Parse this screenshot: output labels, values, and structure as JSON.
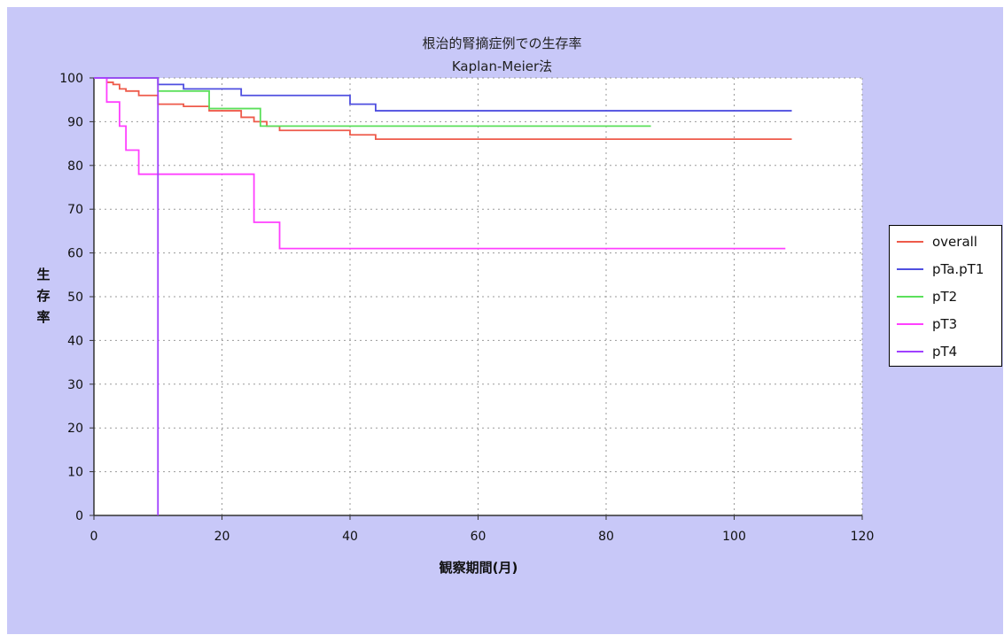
{
  "chart_data": {
    "type": "line",
    "title": "根治的腎摘症例での生存率",
    "subtitle": "Kaplan-Meier法",
    "xlabel": "観察期間(月)",
    "ylabel": "生存率",
    "xlim": [
      0,
      120
    ],
    "ylim": [
      0,
      100
    ],
    "x_ticks": [
      0,
      20,
      40,
      60,
      80,
      100,
      120
    ],
    "y_ticks": [
      0,
      10,
      20,
      30,
      40,
      50,
      60,
      70,
      80,
      90,
      100
    ],
    "grid": true,
    "legend_position": "right",
    "series": [
      {
        "name": "overall",
        "color": "#ee5a4a",
        "x": [
          0,
          2,
          3,
          4,
          5,
          7,
          10,
          14,
          18,
          23,
          25,
          27,
          29,
          40,
          44,
          109
        ],
        "y": [
          100,
          99,
          98.5,
          97.5,
          97,
          96,
          94,
          93.5,
          92.5,
          91,
          90,
          89,
          88,
          87,
          86,
          86
        ]
      },
      {
        "name": "pTa.pT1",
        "color": "#4f4fe0",
        "x": [
          0,
          10,
          14,
          23,
          40,
          44,
          109
        ],
        "y": [
          100,
          98.5,
          97.5,
          96,
          94,
          92.5,
          92.5
        ]
      },
      {
        "name": "pT2",
        "color": "#5be05b",
        "x": [
          0,
          10,
          18,
          26,
          87
        ],
        "y": [
          100,
          97,
          93,
          89,
          89
        ]
      },
      {
        "name": "pT3",
        "color": "#ff40ff",
        "x": [
          0,
          2,
          4,
          5,
          7,
          25,
          29,
          108
        ],
        "y": [
          100,
          94.5,
          89,
          83.5,
          78,
          67,
          61,
          61
        ]
      },
      {
        "name": "pT4",
        "color": "#a040ff",
        "x": [
          0,
          10,
          10
        ],
        "y": [
          100,
          100,
          0
        ]
      }
    ]
  }
}
